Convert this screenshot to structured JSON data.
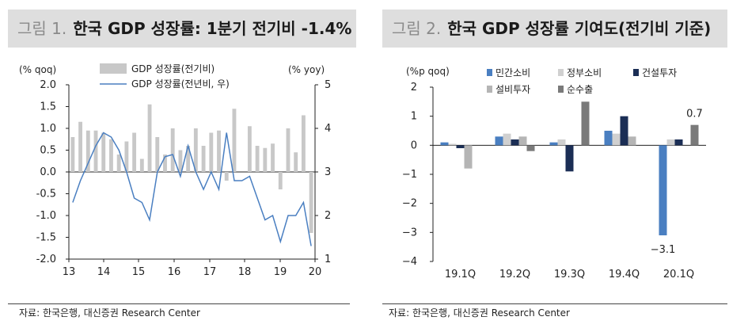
{
  "chart_data": [
    {
      "type": "bar+line",
      "figure_label": "그림 1.",
      "title": "한국 GDP 성장률: 1분기 전기비 -1.4%",
      "left_axis_unit": "(% qoq)",
      "right_axis_unit": "(% yoy)",
      "left_ylim": [
        -2.0,
        2.0
      ],
      "right_ylim": [
        1,
        5
      ],
      "left_ticks": [
        "2.0",
        "1.5",
        "1.0",
        "0.5",
        "0.0",
        "-0.5",
        "-1.0",
        "-1.5",
        "-2.0"
      ],
      "right_ticks": [
        "5",
        "4",
        "3",
        "2",
        "1"
      ],
      "x_ticks": [
        "13",
        "14",
        "15",
        "16",
        "17",
        "18",
        "19",
        "20"
      ],
      "legend": [
        "GDP 성장률(전기비)",
        "GDP 성장률(전년비, 우)"
      ],
      "legend_position": "top-center",
      "colors": {
        "bars": "#c8c8c8",
        "line": "#4a7fc1"
      },
      "series": [
        {
          "name": "GDP 성장률(전기비)",
          "axis": "left",
          "style": "bar",
          "values": [
            0.8,
            1.15,
            0.95,
            0.95,
            0.9,
            0.75,
            0.4,
            0.7,
            0.9,
            0.3,
            1.55,
            0.8,
            0.4,
            1.0,
            0.5,
            0.6,
            1.0,
            0.6,
            0.9,
            0.95,
            -0.2,
            1.45,
            0.0,
            1.05,
            0.6,
            0.55,
            0.65,
            -0.4,
            1.0,
            0.45,
            1.3,
            -1.4
          ]
        },
        {
          "name": "GDP 성장률(전년비, 우)",
          "axis": "right",
          "style": "line",
          "values": [
            2.3,
            2.8,
            3.2,
            3.6,
            3.9,
            3.8,
            3.5,
            3.0,
            2.4,
            2.3,
            1.9,
            3.0,
            3.35,
            3.4,
            2.9,
            3.6,
            3.0,
            2.6,
            3.0,
            2.6,
            3.9,
            2.8,
            2.8,
            2.9,
            2.4,
            1.9,
            2.0,
            1.4,
            2.0,
            2.0,
            2.3,
            1.3
          ]
        }
      ],
      "source": "자료: 한국은행, 대신증권 Research Center"
    },
    {
      "type": "bar",
      "figure_label": "그림 2.",
      "title": "한국 GDP 성장률 기여도(전기비 기준)",
      "ylabel": "(%p qoq)",
      "ylim": [
        -4,
        2
      ],
      "y_ticks": [
        "2",
        "1",
        "0",
        "−1",
        "−2",
        "−3",
        "−4"
      ],
      "categories": [
        "19.1Q",
        "19.2Q",
        "19.3Q",
        "19.4Q",
        "20.1Q"
      ],
      "legend": [
        "민간소비",
        "정부소비",
        "건설투자",
        "설비투자",
        "순수출"
      ],
      "legend_position": "top-right",
      "series": [
        {
          "name": "민간소비",
          "color": "#4a7fc1",
          "values": [
            0.1,
            0.3,
            0.1,
            0.5,
            -3.1
          ]
        },
        {
          "name": "정부소비",
          "color": "#d0d0d0",
          "values": [
            0.05,
            0.4,
            0.2,
            0.4,
            0.2
          ]
        },
        {
          "name": "건설투자",
          "color": "#1b2e55",
          "values": [
            -0.1,
            0.2,
            -0.9,
            1.0,
            0.2
          ]
        },
        {
          "name": "설비투자",
          "color": "#b5b5b5",
          "values": [
            -0.8,
            0.3,
            0.0,
            0.3,
            0.0
          ]
        },
        {
          "name": "순수출",
          "color": "#7a7a7a",
          "values": [
            0.0,
            -0.2,
            1.5,
            0.0,
            0.7
          ]
        }
      ],
      "data_labels": [
        {
          "category": "20.1Q",
          "series": "민간소비",
          "text": "−3.1"
        },
        {
          "category": "20.1Q",
          "series": "순수출",
          "text": "0.7"
        }
      ],
      "source": "자료: 한국은행, 대신증권 Research Center"
    }
  ]
}
